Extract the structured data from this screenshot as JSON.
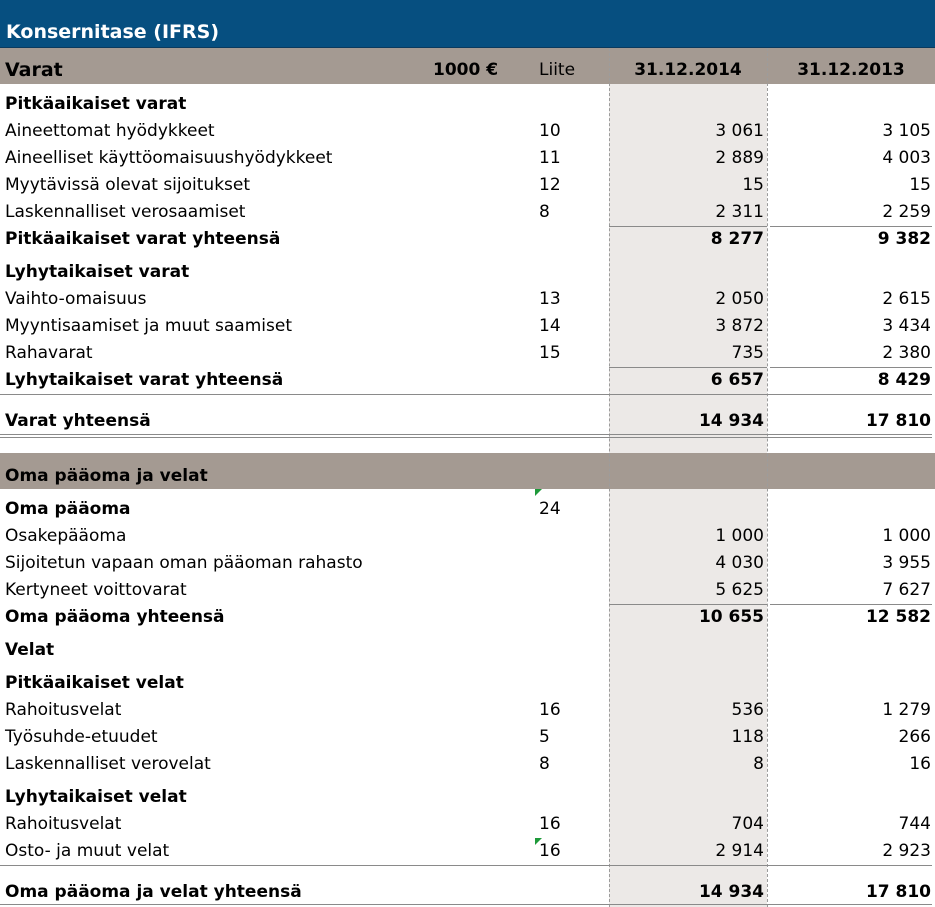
{
  "title": "Konsernitase (IFRS)",
  "header": {
    "label": "Varat",
    "unit": "1000 €",
    "note_col": "Liite",
    "col_2014": "31.12.2014",
    "col_2013": "31.12.2013"
  },
  "assets": {
    "noncurrent_heading": "Pitkäaikaiset varat",
    "noncurrent": [
      {
        "label": "Aineettomat hyödykkeet",
        "note": "10",
        "y2014": "3 061",
        "y2013": "3 105"
      },
      {
        "label": "Aineelliset käyttöomaisuushyödykkeet",
        "note": "11",
        "y2014": "2 889",
        "y2013": "4 003"
      },
      {
        "label": "Myytävissä olevat sijoitukset",
        "note": "12",
        "y2014": "15",
        "y2013": "15"
      },
      {
        "label": "Laskennalliset verosaamiset",
        "note": "8",
        "y2014": "2 311",
        "y2013": "2 259"
      }
    ],
    "noncurrent_total": {
      "label": "Pitkäaikaiset varat yhteensä",
      "y2014": "8 277",
      "y2013": "9 382"
    },
    "current_heading": "Lyhytaikaiset varat",
    "current": [
      {
        "label": "Vaihto-omaisuus",
        "note": "13",
        "y2014": "2 050",
        "y2013": "2 615"
      },
      {
        "label": "Myyntisaamiset ja muut saamiset",
        "note": "14",
        "y2014": "3 872",
        "y2013": "3 434"
      },
      {
        "label": "Rahavarat",
        "note": "15",
        "y2014": "735",
        "y2013": "2 380"
      }
    ],
    "current_total": {
      "label": "Lyhytaikaiset varat yhteensä",
      "y2014": "6 657",
      "y2013": "8 429"
    },
    "total": {
      "label": "Varat yhteensä",
      "y2014": "14 934",
      "y2013": "17 810"
    }
  },
  "equity_liabilities": {
    "heading": "Oma pääoma ja velat",
    "equity_heading": "Oma pääoma",
    "equity_note": "24",
    "equity": [
      {
        "label": "Osakepääoma",
        "y2014": "1 000",
        "y2013": "1 000"
      },
      {
        "label": "Sijoitetun vapaan oman pääoman rahasto",
        "y2014": "4 030",
        "y2013": "3 955"
      },
      {
        "label": "Kertyneet voittovarat",
        "y2014": "5 625",
        "y2013": "7 627"
      }
    ],
    "equity_total": {
      "label": "Oma pääoma yhteensä",
      "y2014": "10 655",
      "y2013": "12 582"
    },
    "liabilities_heading": "Velat",
    "noncurrent_heading": "Pitkäaikaiset velat",
    "noncurrent": [
      {
        "label": "Rahoitusvelat",
        "note": "16",
        "y2014": "536",
        "y2013": "1 279"
      },
      {
        "label": "Työsuhde-etuudet",
        "note": "5",
        "y2014": "118",
        "y2013": "266"
      },
      {
        "label": "Laskennalliset verovelat",
        "note": "8",
        "y2014": "8",
        "y2013": "16"
      }
    ],
    "current_heading": "Lyhytaikaiset velat",
    "current": [
      {
        "label": "Rahoitusvelat",
        "note": "16",
        "y2014": "704",
        "y2013": "744"
      },
      {
        "label": "Osto- ja muut velat",
        "note": "16",
        "y2014": "2 914",
        "y2013": "2 923"
      }
    ],
    "total": {
      "label": "Oma pääoma ja velat yhteensä",
      "y2014": "14 934",
      "y2013": "17 810"
    }
  },
  "colors": {
    "title_bar": "#064f80",
    "header_band": "#a49a92",
    "column_shade": "#ece9e7",
    "comment_marker": "#1e9a3a"
  }
}
